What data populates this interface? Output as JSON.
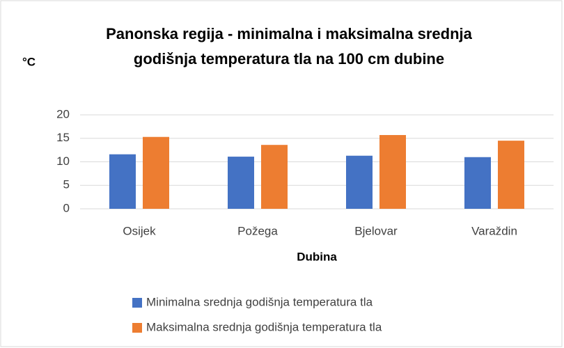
{
  "chart_data": {
    "type": "bar",
    "title": [
      "Panonska regija - minimalna i maksimalna srednja",
      "godišnja temperatura tla na 100 cm dubine"
    ],
    "y_label": "°C",
    "x_label": "Dubina",
    "categories": [
      "Osijek",
      "Požega",
      "Bjelovar",
      "Varaždin"
    ],
    "series": [
      {
        "name": "Minimalna srednja godišnja temperatura tla",
        "color": "#4472c4",
        "values": [
          11.6,
          11.1,
          11.3,
          11.0
        ]
      },
      {
        "name": "Maksimalna srednja godišnja temperatura tla",
        "color": "#ed7d31",
        "values": [
          15.3,
          13.6,
          15.7,
          14.5
        ]
      }
    ],
    "ylim": [
      0,
      20
    ],
    "yticks": [
      0,
      5,
      10,
      15,
      20
    ],
    "grid": true,
    "legend": "bottom"
  }
}
